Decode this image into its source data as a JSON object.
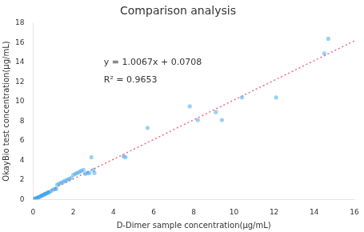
{
  "chart_data": {
    "type": "scatter",
    "title": "Comparison analysis",
    "x_label": "D-Dimer sample concentration(μg/mL)",
    "y_label": "OkayBio test concentration(μg/mL)",
    "xlim": [
      0,
      16
    ],
    "ylim": [
      0,
      18
    ],
    "xticks": [
      0,
      2,
      4,
      6,
      8,
      10,
      12,
      14,
      16
    ],
    "yticks": [
      0,
      2,
      4,
      6,
      8,
      10,
      12,
      14,
      16,
      18
    ],
    "grid": false,
    "annotations": [
      "y = 1.0067x + 0.0708",
      "R² = 0.9653"
    ],
    "series": [
      {
        "type": "scatter",
        "marker": "circle",
        "x": [
          0.05,
          0.1,
          0.15,
          0.2,
          0.25,
          0.3,
          0.35,
          0.4,
          0.45,
          0.5,
          0.55,
          0.6,
          0.65,
          0.7,
          0.75,
          0.8,
          0.9,
          1.0,
          1.1,
          1.15,
          1.2,
          1.3,
          1.4,
          1.5,
          1.6,
          1.7,
          1.8,
          1.9,
          2.0,
          2.1,
          2.2,
          2.3,
          2.4,
          2.5,
          2.6,
          2.7,
          2.8,
          2.9,
          3.0,
          3.05,
          4.5,
          4.6,
          5.7,
          7.8,
          8.2,
          9.1,
          9.4,
          10.4,
          12.1,
          14.5,
          14.7
        ],
        "values": [
          0.05,
          0.1,
          0.12,
          0.15,
          0.2,
          0.25,
          0.3,
          0.35,
          0.4,
          0.45,
          0.5,
          0.55,
          0.6,
          0.65,
          0.7,
          0.75,
          0.85,
          1.0,
          1.05,
          1.1,
          1.5,
          1.6,
          1.7,
          1.8,
          1.9,
          2.0,
          2.1,
          2.2,
          2.5,
          2.6,
          2.7,
          2.8,
          2.9,
          3.0,
          2.6,
          2.7,
          2.7,
          4.3,
          3.0,
          2.7,
          4.4,
          4.3,
          7.3,
          9.5,
          8.1,
          8.9,
          8.1,
          10.4,
          10.4,
          14.9,
          16.4
        ]
      },
      {
        "type": "line",
        "line_style": "dotted",
        "x": [
          0,
          16
        ],
        "values": [
          0.0708,
          16.178
        ]
      }
    ]
  }
}
